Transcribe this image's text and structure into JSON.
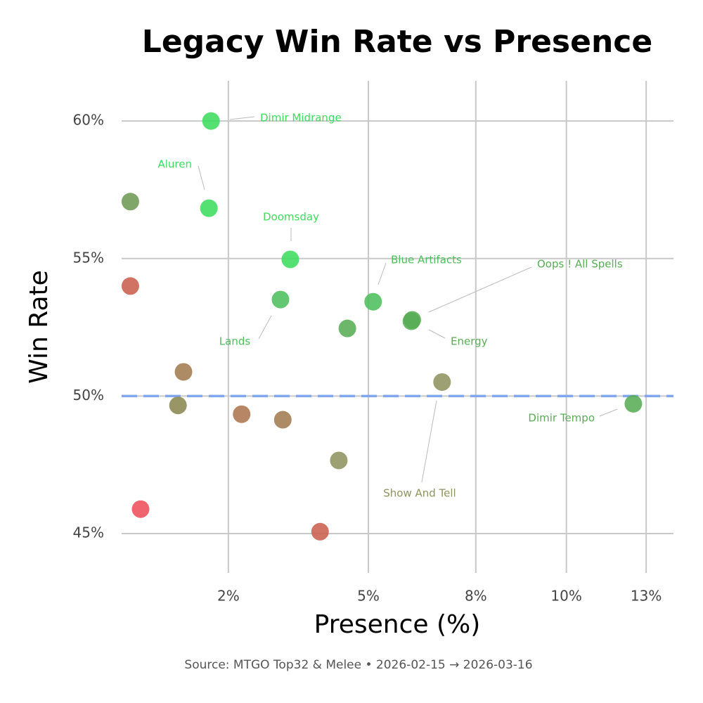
{
  "chart_data": {
    "type": "scatter",
    "title": "Legacy Win Rate vs Presence",
    "x_label": "Presence (%)",
    "y_label": "Win Rate",
    "caption": "Source: MTGO Top32 & Melee  •  2026-02-15 → 2026-03-16",
    "x_scale": "sqrt",
    "xlim": [
      1.17,
      13.42
    ],
    "xticks": [
      {
        "value": 2.5,
        "label": "2%"
      },
      {
        "value": 5,
        "label": "5%"
      },
      {
        "value": 7.5,
        "label": "8%"
      },
      {
        "value": 10,
        "label": "10%"
      },
      {
        "value": 12.5,
        "label": "13%"
      }
    ],
    "ylim": [
      43.57,
      61.46
    ],
    "yticks": [
      {
        "value": 45,
        "label": "45%"
      },
      {
        "value": 50,
        "label": "50%"
      },
      {
        "value": 55,
        "label": "55%"
      },
      {
        "value": 60,
        "label": "60%"
      }
    ],
    "grid": true,
    "reference_line": {
      "value": 50,
      "color": "#7fa6ee"
    },
    "x": [
      2.25,
      2.22,
      1.26,
      3.5,
      1.26,
      3.33,
      5.1,
      4.57,
      5.96,
      5.94,
      1.88,
      1.81,
      6.66,
      12.08,
      2.7,
      3.37,
      4.4,
      1.37,
      4.04
    ],
    "y": [
      60.0,
      56.83,
      57.07,
      54.97,
      54.0,
      53.51,
      53.43,
      52.46,
      52.77,
      52.72,
      50.88,
      49.66,
      50.51,
      49.72,
      49.34,
      49.14,
      47.66,
      45.89,
      45.07
    ],
    "labels": [
      "Dimir Midrange",
      "Aluren",
      null,
      "Doomsday",
      null,
      "Lands",
      "Blue Artifacts",
      null,
      "Oops ! All Spells",
      "Energy",
      null,
      null,
      "Show And Tell",
      "Dimir Tempo",
      null,
      null,
      null,
      null,
      null
    ],
    "colors": [
      "#3ddc5f",
      "#3ddc5f",
      "#6e9a55",
      "#3ddc5f",
      "#c95f4f",
      "#4cbf5c",
      "#4cbf5c",
      "#58ad55",
      "#58ad55",
      "#58ad55",
      "#a27b50",
      "#8b8750",
      "#8f935e",
      "#58ad55",
      "#ad7550",
      "#a27b50",
      "#8f935e",
      "#ee4e5b",
      "#c95f4f"
    ]
  }
}
